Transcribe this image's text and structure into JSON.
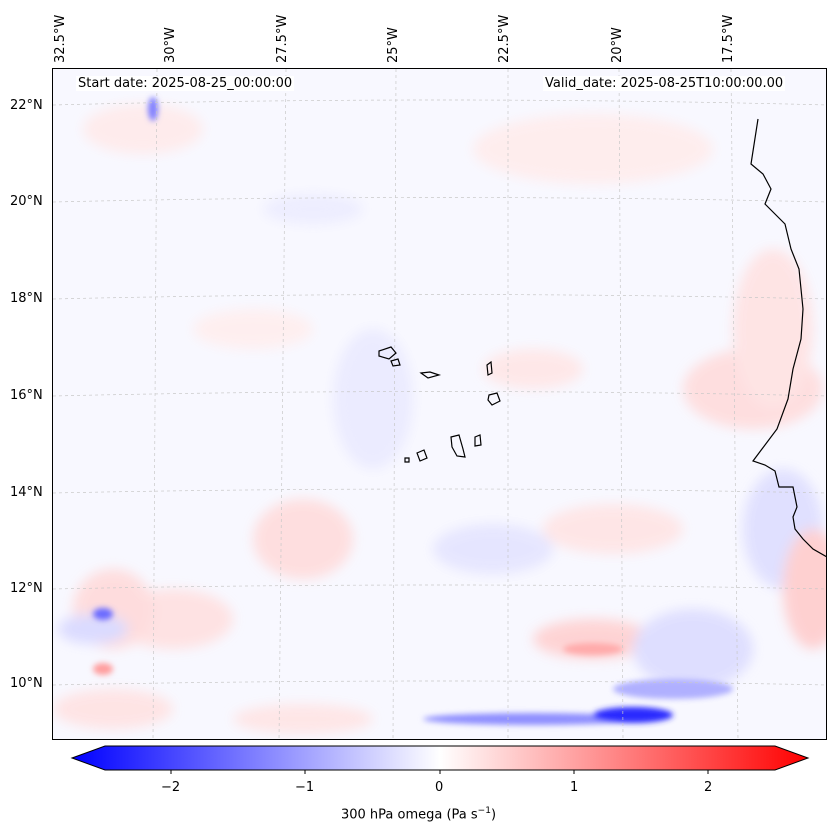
{
  "map": {
    "start_date": "Start date: 2025-08-25_00:00:00",
    "valid_date": "Valid_date: 2025-08-25T10:00:00.00",
    "lon_labels": [
      "32.5°W",
      "30°W",
      "27.5°W",
      "25°W",
      "22.5°W",
      "20°W",
      "17.5°W"
    ],
    "lat_labels": [
      "22°N",
      "20°N",
      "18°N",
      "16°N",
      "14°N",
      "12°N",
      "10°N"
    ],
    "islands": [
      "Santo Antão",
      "São Vicente",
      "São Nicolau",
      "Sal",
      "Boa Vista",
      "Maio",
      "Santiago",
      "Fogo",
      "Brava"
    ]
  },
  "colorbar": {
    "ticks": [
      "−2",
      "−1",
      "0",
      "1",
      "2"
    ],
    "label_prefix": "300 hPa omega (Pa s",
    "label_exp": "−1",
    "label_suffix": ")",
    "min_color": "#0000ff",
    "mid_color": "#ffffff",
    "max_color": "#ff0000"
  },
  "field": {
    "variable": "300 hPa omega",
    "units": "Pa s−1",
    "range": [
      -2.5,
      2.5
    ]
  }
}
